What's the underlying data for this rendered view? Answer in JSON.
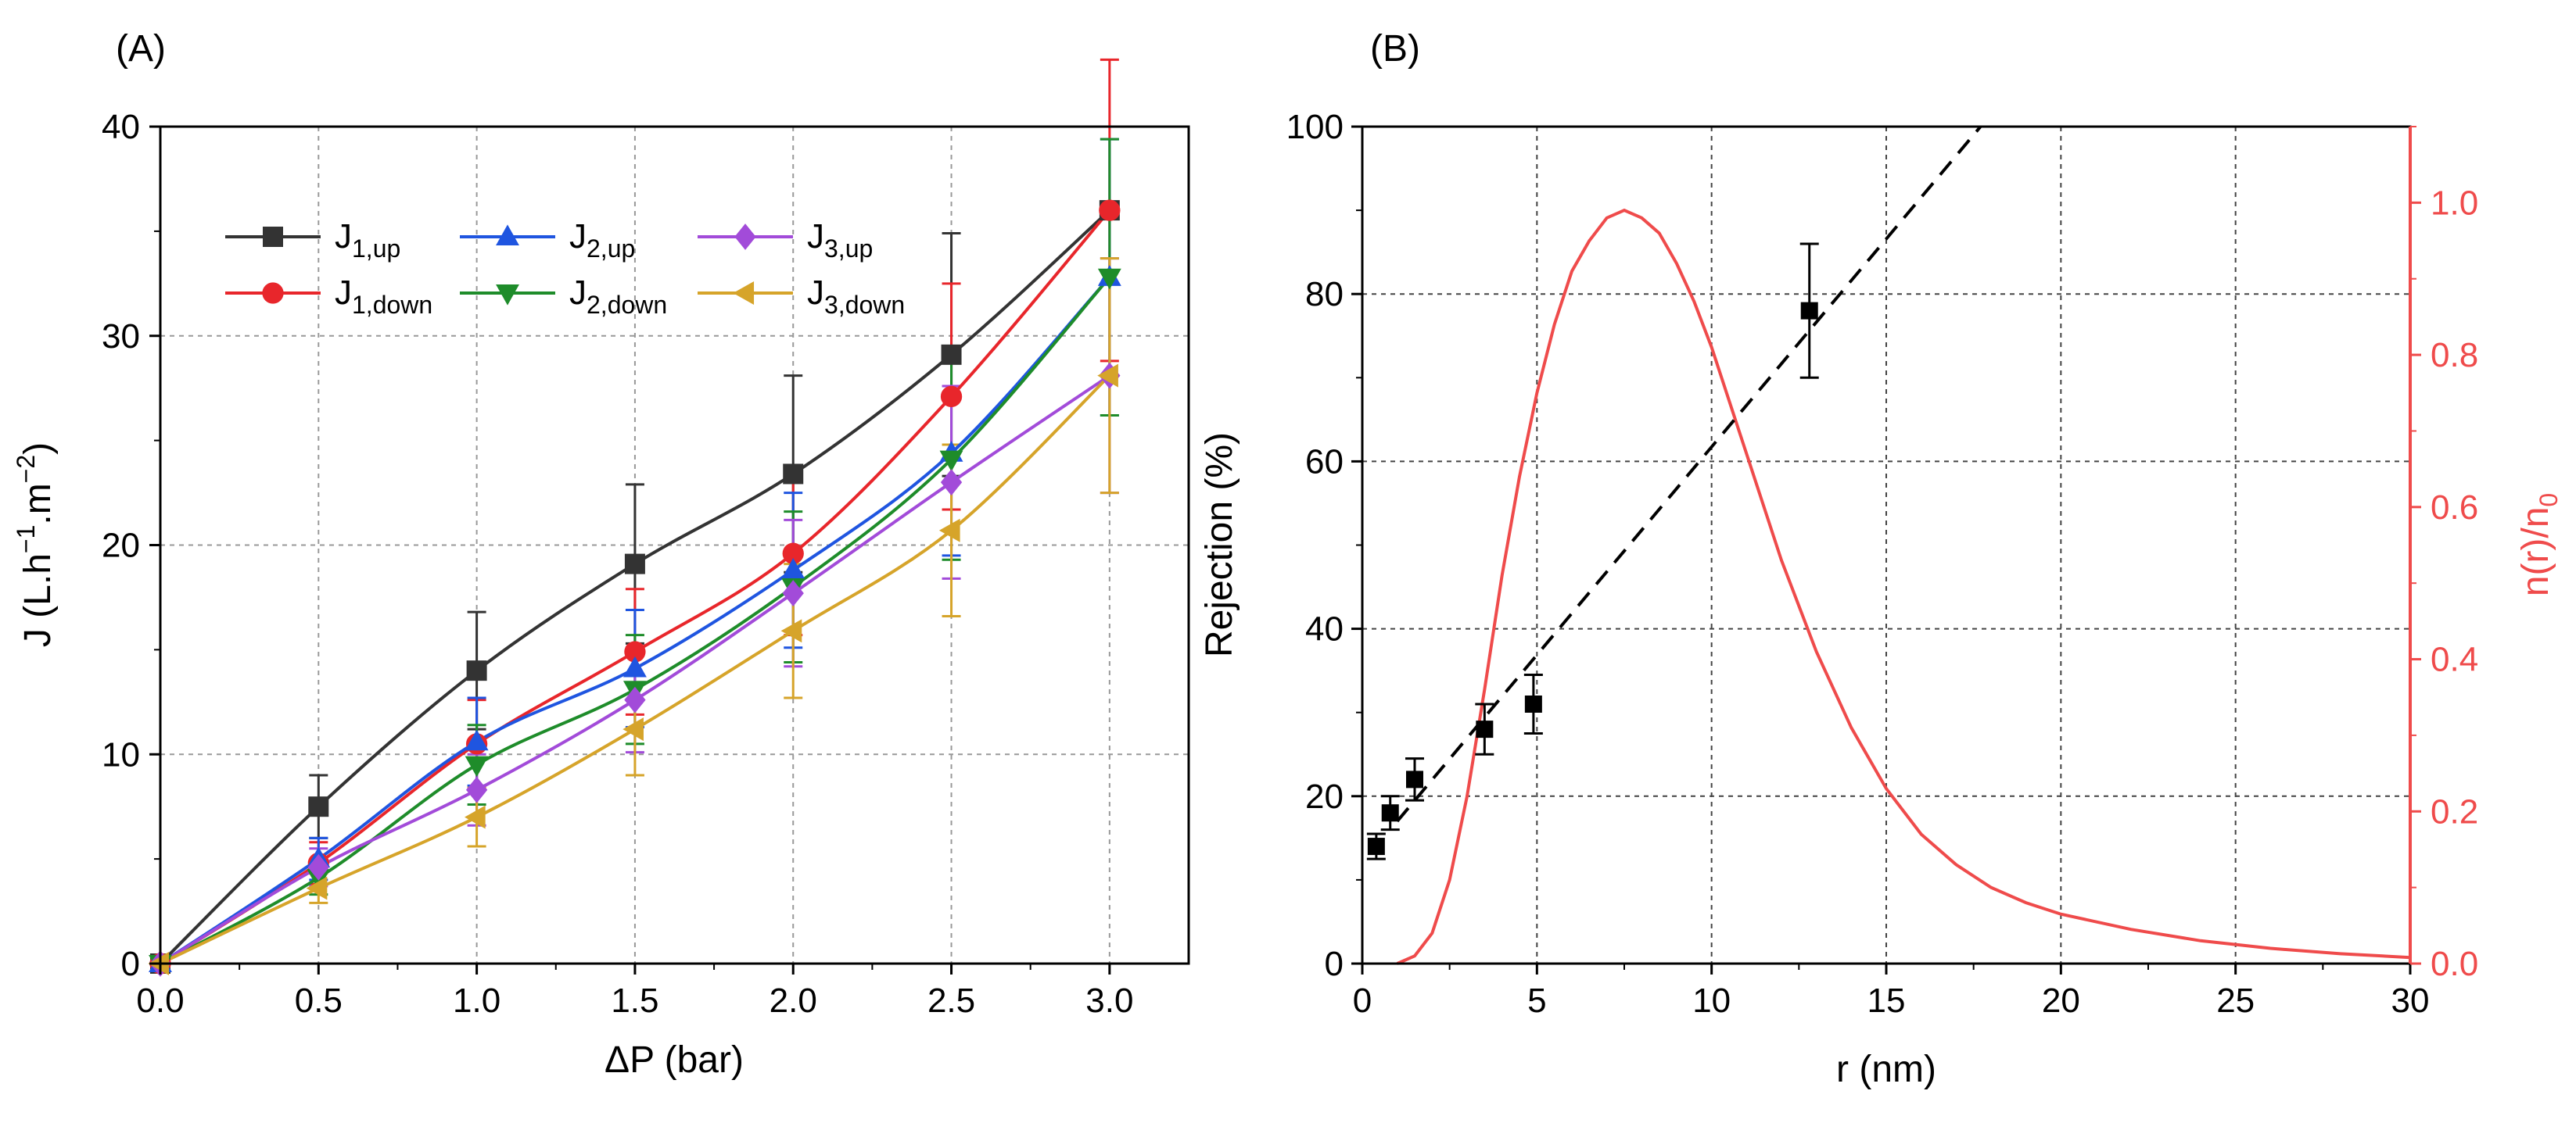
{
  "chart_data": [
    {
      "type": "line",
      "panel_label": "(A)",
      "xlabel": "ΔP (bar)",
      "ylabel": {
        "base": "J (L.h",
        "sup1": "−1",
        "mid": ".m",
        "sup2": "−2",
        "end": ")"
      },
      "xlim": [
        0,
        3.25
      ],
      "ylim": [
        0,
        40
      ],
      "xticks": [
        0,
        0.5,
        1,
        1.5,
        2,
        2.5,
        3
      ],
      "xtick_labels": [
        "0.0",
        "0.5",
        "1.0",
        "1.5",
        "2.0",
        "2.5",
        "3.0"
      ],
      "yticks": [
        0,
        10,
        20,
        30,
        40
      ],
      "ytick_labels": [
        "0",
        "10",
        "20",
        "30",
        "40"
      ],
      "grid": true,
      "legend": "top-left",
      "x": [
        0,
        0.5,
        1,
        1.5,
        2,
        2.5,
        3
      ],
      "series": [
        {
          "name": "J",
          "sub": "1,up",
          "color": "#333333",
          "marker": "square",
          "values": [
            0,
            7.5,
            14,
            19.1,
            23.4,
            29.1,
            36
          ],
          "err": [
            0,
            1.5,
            2.8,
            3.8,
            4.7,
            5.8,
            0
          ]
        },
        {
          "name": "J",
          "sub": "1,down",
          "color": "#e8262b",
          "marker": "circle",
          "values": [
            0,
            4.8,
            10.5,
            14.9,
            19.6,
            27.1,
            36
          ],
          "err": [
            0,
            1.0,
            2.1,
            3.0,
            3.9,
            5.4,
            7.2
          ]
        },
        {
          "name": "J",
          "sub": "2,up",
          "color": "#1f55e0",
          "marker": "triangle-up",
          "values": [
            0,
            5,
            10.6,
            14.1,
            18.8,
            24.4,
            32.8
          ],
          "err": [
            0,
            1.0,
            2.1,
            2.8,
            3.7,
            4.9,
            6.6
          ]
        },
        {
          "name": "J",
          "sub": "2,down",
          "color": "#1e8c2a",
          "marker": "triangle-down",
          "values": [
            0,
            4.1,
            9.5,
            13.1,
            18,
            24.1,
            32.8
          ],
          "err": [
            0,
            0.8,
            1.9,
            2.6,
            3.6,
            4.8,
            6.6
          ]
        },
        {
          "name": "J",
          "sub": "3,up",
          "color": "#a24bd9",
          "marker": "diamond",
          "values": [
            0,
            4.6,
            8.3,
            12.6,
            17.7,
            23,
            28.1
          ],
          "err": [
            0,
            0.9,
            1.7,
            2.5,
            3.5,
            4.6,
            5.6
          ]
        },
        {
          "name": "J",
          "sub": "3,down",
          "color": "#d6a42a",
          "marker": "triangle-left",
          "values": [
            0,
            3.6,
            7,
            11.2,
            15.9,
            20.7,
            28.1
          ],
          "err": [
            0,
            0.7,
            1.4,
            2.2,
            3.2,
            4.1,
            5.6
          ]
        }
      ]
    },
    {
      "type": "scatter",
      "panel_label": "(B)",
      "xlabel": "r (nm)",
      "ylabel": "Rejection (%)",
      "y2label": {
        "base": "n(r)/n",
        "sub": "0"
      },
      "xlim": [
        0,
        30
      ],
      "ylim": [
        0,
        100
      ],
      "y2lim": [
        0,
        1.1
      ],
      "xticks": [
        0,
        5,
        10,
        15,
        20,
        25,
        30
      ],
      "xtick_labels": [
        "0",
        "5",
        "10",
        "15",
        "20",
        "25",
        "30"
      ],
      "yticks": [
        0,
        20,
        40,
        60,
        80,
        100
      ],
      "ytick_labels": [
        "0",
        "20",
        "40",
        "60",
        "80",
        "100"
      ],
      "y2ticks": [
        0,
        0.2,
        0.4,
        0.6,
        0.8,
        1.0
      ],
      "y2tick_labels": [
        "0.0",
        "0.2",
        "0.4",
        "0.6",
        "0.8",
        "1.0"
      ],
      "grid": true,
      "rejection_points": {
        "x": [
          0.4,
          0.8,
          1.5,
          3.5,
          4.9,
          12.8
        ],
        "y": [
          14,
          18,
          22,
          28,
          31,
          78
        ],
        "err": [
          1.5,
          2,
          2.5,
          3,
          3.5,
          8
        ],
        "color": "#000000"
      },
      "fit_line": {
        "x": [
          1,
          17.7
        ],
        "y": [
          17,
          100
        ],
        "style": "dashed",
        "color": "#000000"
      },
      "distribution": {
        "x": [
          1.0,
          1.5,
          2.0,
          2.5,
          3.0,
          3.5,
          4.0,
          4.5,
          5.0,
          5.5,
          6.0,
          6.5,
          7.0,
          7.5,
          8.0,
          8.5,
          9.0,
          9.5,
          10.0,
          11.0,
          12.0,
          13.0,
          14.0,
          15.0,
          16.0,
          17.0,
          18.0,
          19.0,
          20.0,
          22.0,
          24.0,
          26.0,
          28.0,
          30.0
        ],
        "y2": [
          0.0,
          0.01,
          0.04,
          0.11,
          0.22,
          0.36,
          0.51,
          0.64,
          0.75,
          0.84,
          0.91,
          0.95,
          0.98,
          0.99,
          0.98,
          0.96,
          0.92,
          0.87,
          0.81,
          0.67,
          0.53,
          0.41,
          0.31,
          0.23,
          0.17,
          0.13,
          0.1,
          0.08,
          0.065,
          0.045,
          0.03,
          0.02,
          0.013,
          0.008
        ],
        "color": "#ef4b4b"
      }
    }
  ]
}
